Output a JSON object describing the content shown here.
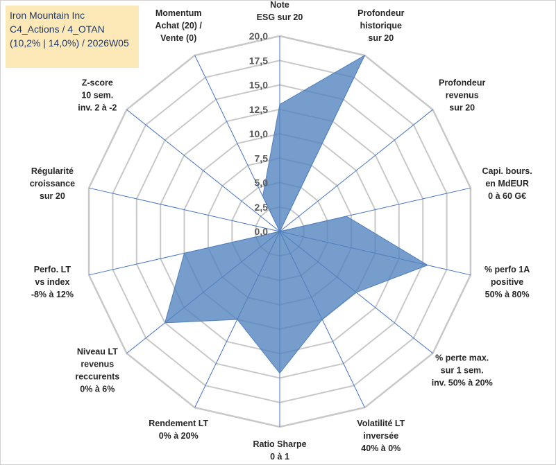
{
  "header": {
    "line1": "Iron Mountain Inc",
    "line2": "C4_Actions / 4_OTAN",
    "line3": "(10,2% | 14,0%) / 2026W05"
  },
  "chart_data": {
    "type": "radar",
    "title": "Iron Mountain Inc",
    "rmin": 0,
    "rmax": 20,
    "ticks": [
      "0,0",
      "2,5",
      "5,0",
      "7,5",
      "10,0",
      "12,5",
      "15,0",
      "17,5",
      "20,0"
    ],
    "categories": [
      [
        "Note",
        "ESG sur 20"
      ],
      [
        "Profondeur",
        "historique",
        "sur 20"
      ],
      [
        "Profondeur",
        "revenus",
        "sur 20"
      ],
      [
        "Capi. bours.",
        "en MdEUR",
        "0 à 60 G€"
      ],
      [
        "% perfo 1A",
        "positive",
        "50% à 80%"
      ],
      [
        "% perte max.",
        "sur 1 sem.",
        "inv. 50% à 20%"
      ],
      [
        "Volatilité LT",
        "inversée",
        "40% à 0%"
      ],
      [
        "Ratio Sharpe",
        "0 à 1"
      ],
      [
        "Rendement LT",
        "0% à 20%"
      ],
      [
        "Niveau LT",
        "revenus",
        "reccurents",
        "0% à 6%"
      ],
      [
        "Perfo. LT",
        "vs index",
        "-8% à 12%"
      ],
      [
        "Régularité",
        "croissance",
        "sur 20"
      ],
      [
        "Z-score",
        "10 sem.",
        "inv. 2 à -2"
      ],
      [
        "Momentum",
        "Achat (20) /",
        "Vente (0)"
      ]
    ],
    "series": [
      {
        "name": "Iron Mountain Inc",
        "values": [
          13.0,
          20.0,
          0.0,
          7.0,
          15.5,
          10.0,
          10.0,
          14.5,
          10.0,
          15.0,
          10.0,
          0.0,
          0.0,
          4.0
        ],
        "color": "#4f81bd"
      }
    ],
    "grid": true,
    "legend": "none"
  }
}
